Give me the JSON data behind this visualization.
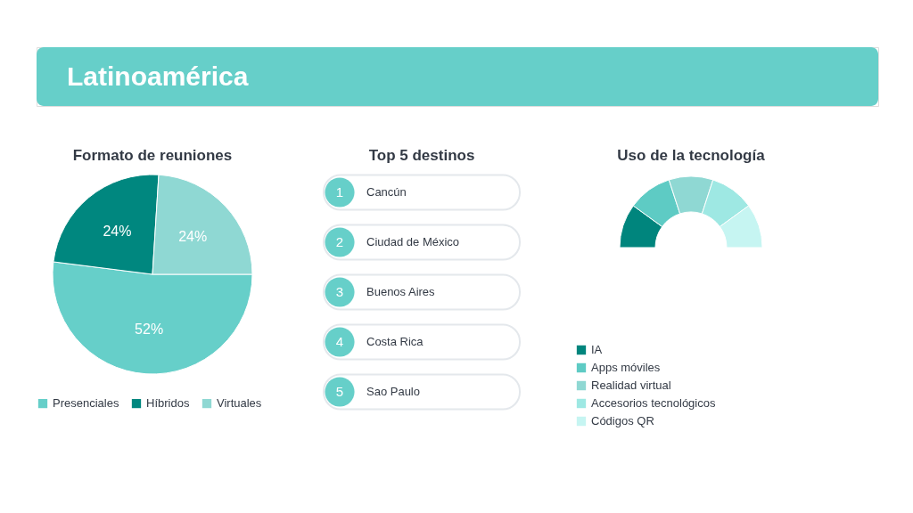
{
  "chart_data": [
    {
      "type": "other",
      "title": "Latinoamérica"
    },
    {
      "type": "pie",
      "title": "Formato de reuniones",
      "categories": [
        "Presenciales",
        "Híbridos",
        "Virtuales"
      ],
      "values": [
        52,
        24,
        24
      ],
      "colors": [
        "#66cfc9",
        "#00877f",
        "#8fd8d3"
      ],
      "value_labels": [
        "52%",
        "24%",
        "24%"
      ],
      "legend": "bottom"
    },
    {
      "type": "other",
      "title": "Top 5 destinos",
      "categories": [
        "Cancún",
        "Ciudad de México",
        "Buenos Aires",
        "Costa Rica",
        "Sao Paulo"
      ],
      "values": [
        1,
        2,
        3,
        4,
        5
      ],
      "value_labels": [
        "1",
        "2",
        "3",
        "4",
        "5"
      ]
    },
    {
      "type": "donut",
      "title": "Uso de la tecnología",
      "categories": [
        "IA",
        "Apps móviles",
        "Realidad virtual",
        "Accesorios tecnológicos",
        "Códigos QR"
      ],
      "values": [
        20,
        20,
        20,
        20,
        20
      ],
      "colors": [
        "#00857d",
        "#5ecbc4",
        "#8fd8d3",
        "#9ee8e3",
        "#c6f5f2"
      ],
      "legend": "bottom"
    }
  ]
}
